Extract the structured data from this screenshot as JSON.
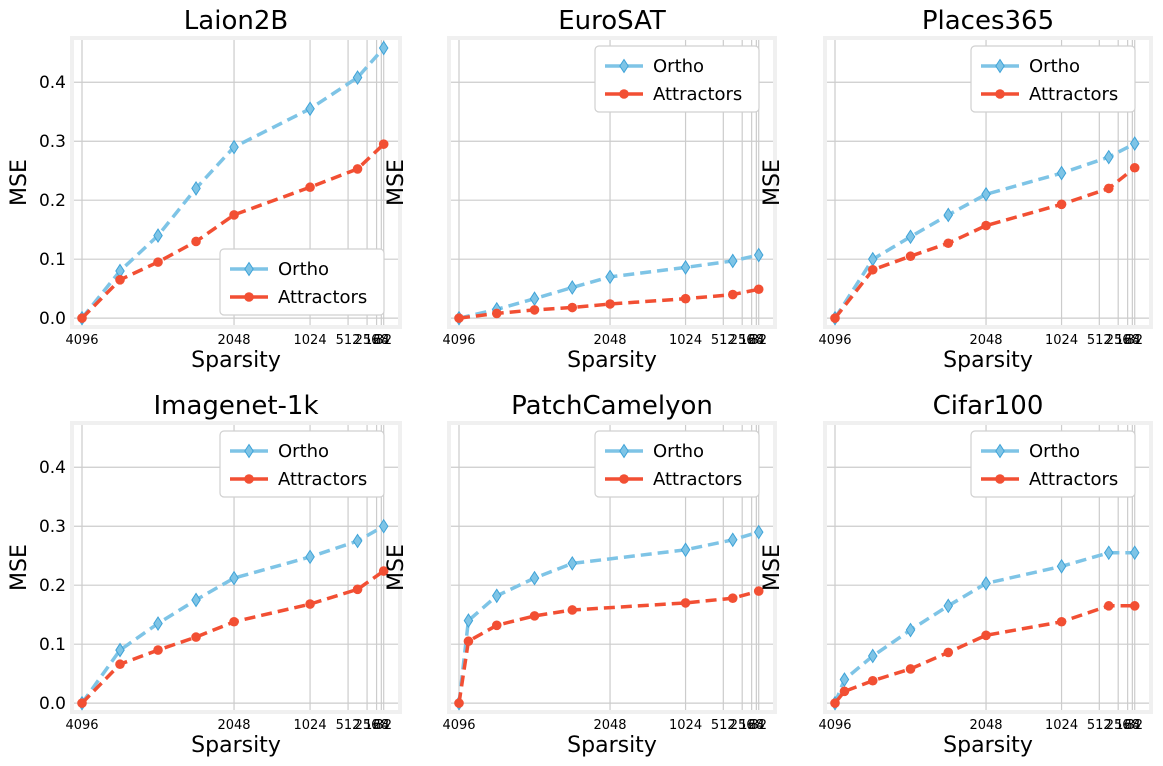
{
  "colors": {
    "ortho": "#7ec4e6",
    "attractors": "#f24f33"
  },
  "chart_data": [
    {
      "type": "line",
      "title": "Laion2B",
      "xlabel": "Sparsity",
      "ylabel": "MSE",
      "x_ticks": [
        "4096",
        "2048",
        "1024",
        "512",
        "256",
        "128",
        "64",
        "32"
      ],
      "y_ticks": [
        "0.0",
        "0.1",
        "0.2",
        "0.3",
        "0.4"
      ],
      "ylim": [
        -0.015,
        0.475
      ],
      "legend": "lower-right",
      "grid": true,
      "series": [
        {
          "name": "Ortho",
          "marker": "diamond",
          "x": [
            4096,
            3584,
            3072,
            2560,
            2048,
            1024,
            384,
            32
          ],
          "y": [
            0.0,
            0.08,
            0.14,
            0.22,
            0.29,
            0.355,
            0.408,
            0.458
          ]
        },
        {
          "name": "Attractors",
          "marker": "circle",
          "x": [
            4096,
            3584,
            3072,
            2560,
            2048,
            1024,
            384,
            32
          ],
          "y": [
            0.0,
            0.065,
            0.095,
            0.13,
            0.175,
            0.222,
            0.253,
            0.295
          ]
        }
      ]
    },
    {
      "type": "line",
      "title": "EuroSAT",
      "xlabel": "Sparsity",
      "ylabel": "MSE",
      "x_ticks": [
        "4096",
        "2048",
        "1024",
        "512",
        "256",
        "128",
        "64",
        "32"
      ],
      "y_ticks": [],
      "ylim": [
        -0.015,
        0.475
      ],
      "legend": "upper-right",
      "grid": true,
      "series": [
        {
          "name": "Ortho",
          "marker": "diamond",
          "x": [
            4096,
            3584,
            3072,
            2560,
            2048,
            1024,
            384,
            32
          ],
          "y": [
            0.0,
            0.015,
            0.033,
            0.052,
            0.07,
            0.086,
            0.097,
            0.107
          ]
        },
        {
          "name": "Attractors",
          "marker": "circle",
          "x": [
            4096,
            3584,
            3072,
            2560,
            2048,
            1024,
            384,
            32
          ],
          "y": [
            0.0,
            0.008,
            0.014,
            0.018,
            0.024,
            0.033,
            0.04,
            0.049
          ]
        }
      ]
    },
    {
      "type": "line",
      "title": "Places365",
      "xlabel": "Sparsity",
      "ylabel": "MSE",
      "x_ticks": [
        "4096",
        "2048",
        "1024",
        "512",
        "256",
        "128",
        "64",
        "32"
      ],
      "y_ticks": [],
      "ylim": [
        -0.015,
        0.475
      ],
      "legend": "upper-right",
      "grid": true,
      "series": [
        {
          "name": "Ortho",
          "marker": "diamond",
          "x": [
            4096,
            3584,
            3072,
            2560,
            2048,
            1024,
            384,
            32
          ],
          "y": [
            0.0,
            0.1,
            0.138,
            0.175,
            0.21,
            0.246,
            0.273,
            0.296
          ]
        },
        {
          "name": "Attractors",
          "marker": "circle",
          "x": [
            4096,
            3584,
            3072,
            2560,
            2048,
            1024,
            384,
            32
          ],
          "y": [
            0.0,
            0.082,
            0.105,
            0.127,
            0.157,
            0.193,
            0.22,
            0.255
          ]
        }
      ]
    },
    {
      "type": "line",
      "title": "Imagenet-1k",
      "xlabel": "Sparsity",
      "ylabel": "MSE",
      "x_ticks": [
        "4096",
        "2048",
        "1024",
        "512",
        "256",
        "128",
        "64",
        "32"
      ],
      "y_ticks": [
        "0.0",
        "0.1",
        "0.2",
        "0.3",
        "0.4"
      ],
      "ylim": [
        -0.015,
        0.475
      ],
      "legend": "upper-right",
      "grid": true,
      "series": [
        {
          "name": "Ortho",
          "marker": "diamond",
          "x": [
            4096,
            3584,
            3072,
            2560,
            2048,
            1024,
            384,
            32
          ],
          "y": [
            0.0,
            0.09,
            0.135,
            0.175,
            0.212,
            0.248,
            0.275,
            0.3
          ]
        },
        {
          "name": "Attractors",
          "marker": "circle",
          "x": [
            4096,
            3584,
            3072,
            2560,
            2048,
            1024,
            384,
            32
          ],
          "y": [
            0.0,
            0.066,
            0.09,
            0.112,
            0.138,
            0.168,
            0.193,
            0.224
          ]
        }
      ]
    },
    {
      "type": "line",
      "title": "PatchCamelyon",
      "xlabel": "Sparsity",
      "ylabel": "MSE",
      "x_ticks": [
        "4096",
        "2048",
        "1024",
        "512",
        "256",
        "128",
        "64",
        "32"
      ],
      "y_ticks": [],
      "ylim": [
        -0.015,
        0.475
      ],
      "legend": "upper-right",
      "grid": true,
      "series": [
        {
          "name": "Ortho",
          "marker": "diamond",
          "x": [
            4096,
            3968,
            3584,
            3072,
            2560,
            1024,
            384,
            32
          ],
          "y": [
            0.0,
            0.14,
            0.182,
            0.212,
            0.237,
            0.26,
            0.277,
            0.29
          ]
        },
        {
          "name": "Attractors",
          "marker": "circle",
          "x": [
            4096,
            3968,
            3584,
            3072,
            2560,
            1024,
            384,
            32
          ],
          "y": [
            0.0,
            0.105,
            0.132,
            0.148,
            0.158,
            0.17,
            0.178,
            0.19
          ]
        }
      ]
    },
    {
      "type": "line",
      "title": "Cifar100",
      "xlabel": "Sparsity",
      "ylabel": "MSE",
      "x_ticks": [
        "4096",
        "2048",
        "1024",
        "512",
        "256",
        "128",
        "64",
        "32"
      ],
      "y_ticks": [],
      "ylim": [
        -0.015,
        0.475
      ],
      "legend": "upper-right",
      "grid": true,
      "series": [
        {
          "name": "Ortho",
          "marker": "diamond",
          "x": [
            4096,
            3968,
            3584,
            3072,
            2560,
            2048,
            1024,
            384,
            32
          ],
          "y": [
            0.0,
            0.04,
            0.08,
            0.124,
            0.165,
            0.203,
            0.232,
            0.255,
            0.255
          ]
        },
        {
          "name": "Attractors",
          "marker": "circle",
          "x": [
            4096,
            3968,
            3584,
            3072,
            2560,
            2048,
            1024,
            384,
            32
          ],
          "y": [
            0.0,
            0.02,
            0.038,
            0.058,
            0.086,
            0.115,
            0.138,
            0.165,
            0.165
          ]
        }
      ]
    }
  ]
}
